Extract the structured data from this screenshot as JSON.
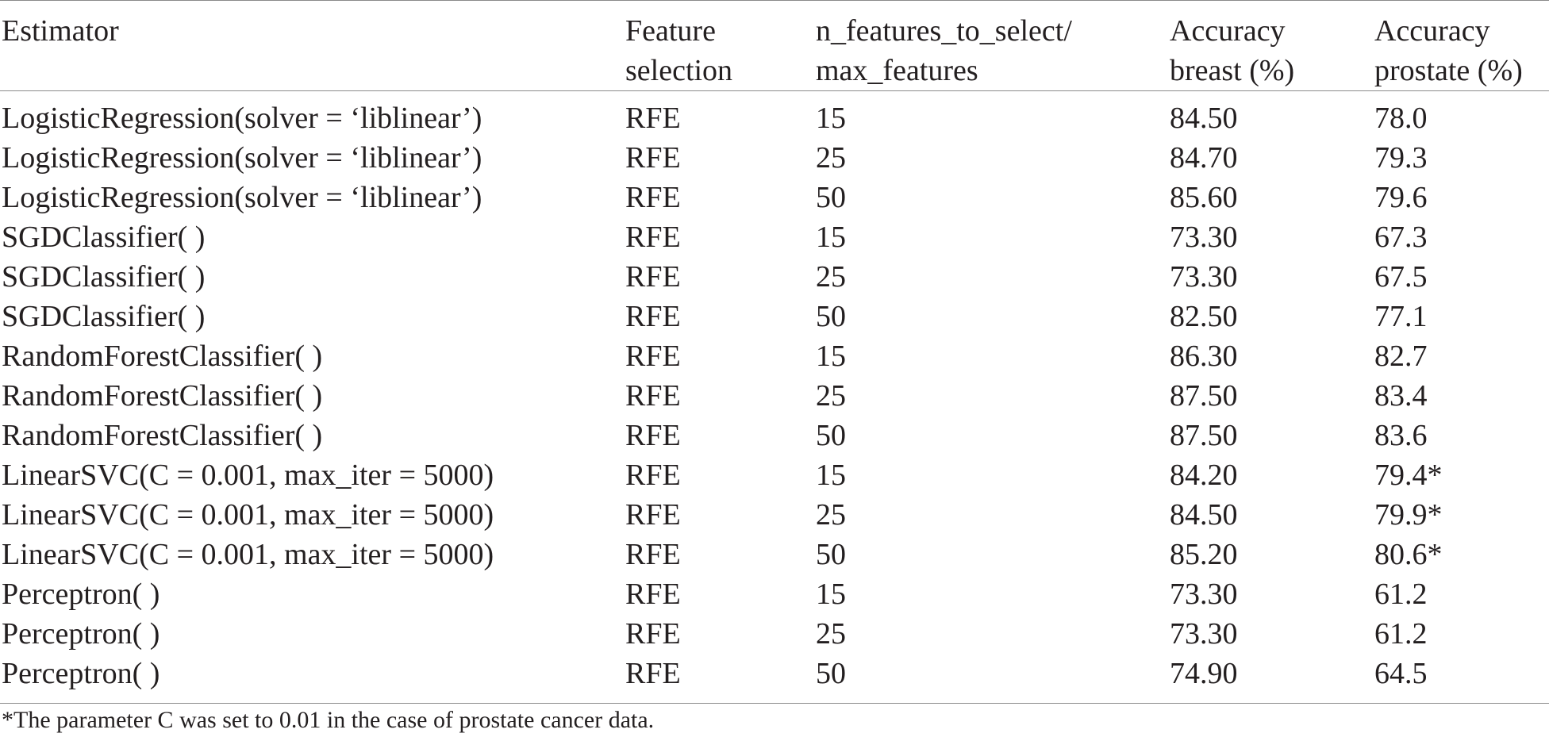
{
  "table": {
    "headers": [
      "Estimator",
      "Feature\nselection",
      "n_features_to_select/\nmax_features",
      "Accuracy\nbreast (%)",
      "Accuracy\nprostate (%)"
    ],
    "rows": [
      [
        "LogisticRegression(solver = ‘liblinear’)",
        "RFE",
        "15",
        "84.50",
        "78.0"
      ],
      [
        "LogisticRegression(solver = ‘liblinear’)",
        "RFE",
        "25",
        "84.70",
        "79.3"
      ],
      [
        "LogisticRegression(solver = ‘liblinear’)",
        "RFE",
        "50",
        "85.60",
        "79.6"
      ],
      [
        "SGDClassifier( )",
        "RFE",
        "15",
        "73.30",
        "67.3"
      ],
      [
        "SGDClassifier( )",
        "RFE",
        "25",
        "73.30",
        "67.5"
      ],
      [
        "SGDClassifier( )",
        "RFE",
        "50",
        "82.50",
        "77.1"
      ],
      [
        "RandomForestClassifier( )",
        "RFE",
        "15",
        "86.30",
        "82.7"
      ],
      [
        "RandomForestClassifier( )",
        "RFE",
        "25",
        "87.50",
        "83.4"
      ],
      [
        "RandomForestClassifier( )",
        "RFE",
        "50",
        "87.50",
        "83.6"
      ],
      [
        "LinearSVC(C = 0.001,  max_iter = 5000)",
        "RFE",
        "15",
        "84.20",
        "79.4*"
      ],
      [
        "LinearSVC(C = 0.001,  max_iter = 5000)",
        "RFE",
        "25",
        "84.50",
        "79.9*"
      ],
      [
        "LinearSVC(C = 0.001,  max_iter = 5000)",
        "RFE",
        "50",
        "85.20",
        "80.6*"
      ],
      [
        "Perceptron( )",
        "RFE",
        "15",
        "73.30",
        "61.2"
      ],
      [
        "Perceptron( )",
        "RFE",
        "25",
        "73.30",
        "61.2"
      ],
      [
        "Perceptron( )",
        "RFE",
        "50",
        "74.90",
        "64.5"
      ]
    ],
    "footnote": "*The parameter C was set to 0.01 in the case of prostate cancer data."
  },
  "colors": {
    "text": "#231f20",
    "rule": "#8a8a8a",
    "background": "#ffffff"
  }
}
